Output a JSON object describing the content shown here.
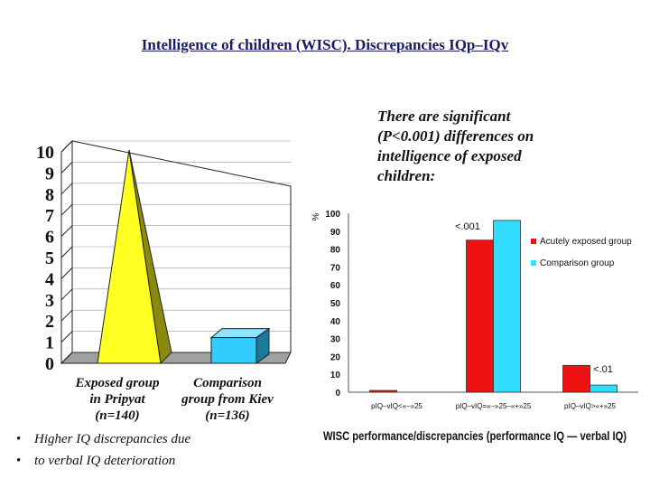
{
  "title": "Intelligence of children (WISC). Discrepancies IQp–IQv",
  "note": [
    "There are significant",
    "(P<0.001) differences on",
    "intelligence of exposed",
    "children:"
  ],
  "bullets": [
    "Higher IQ discrepancies due",
    "to verbal IQ deterioration"
  ],
  "chart_data": [
    {
      "type": "bar",
      "title": "",
      "xlabel": "",
      "ylabel": "",
      "ylim": [
        0,
        10
      ],
      "yticks": [
        0,
        1,
        2,
        3,
        4,
        5,
        6,
        7,
        8,
        9,
        10
      ],
      "categories": [
        [
          "Exposed group",
          "in Pripyat",
          "(n=140)"
        ],
        [
          "Comparison",
          "group from Kiev",
          "(n=136)"
        ]
      ],
      "values": [
        10,
        1.3
      ],
      "colors": [
        "#ffff22",
        "#33ccff"
      ],
      "style": "3d-pyramid-and-box"
    },
    {
      "type": "bar",
      "title": "",
      "xlabel": "WISC performance/discrepancies (performance IQ — verbal IQ)",
      "ylabel": "%",
      "ylim": [
        0,
        100
      ],
      "yticks": [
        0,
        10,
        20,
        30,
        40,
        50,
        60,
        70,
        80,
        90,
        100
      ],
      "categories": [
        "pIQ–vIQ<«–»25",
        "pIQ–vIQ=«–»25–«+»25",
        "pIQ–vIQ>«+»25"
      ],
      "series": [
        {
          "name": "Acutely exposed group",
          "values": [
            1,
            85,
            15
          ],
          "color": "#ee1111"
        },
        {
          "name": "Comparison group",
          "values": [
            0,
            96,
            4
          ],
          "color": "#33ddff"
        }
      ],
      "annotations": [
        {
          "text": "<.001",
          "category": 1
        },
        {
          "text": "<.01",
          "category": 2
        }
      ],
      "legend": "right"
    }
  ]
}
